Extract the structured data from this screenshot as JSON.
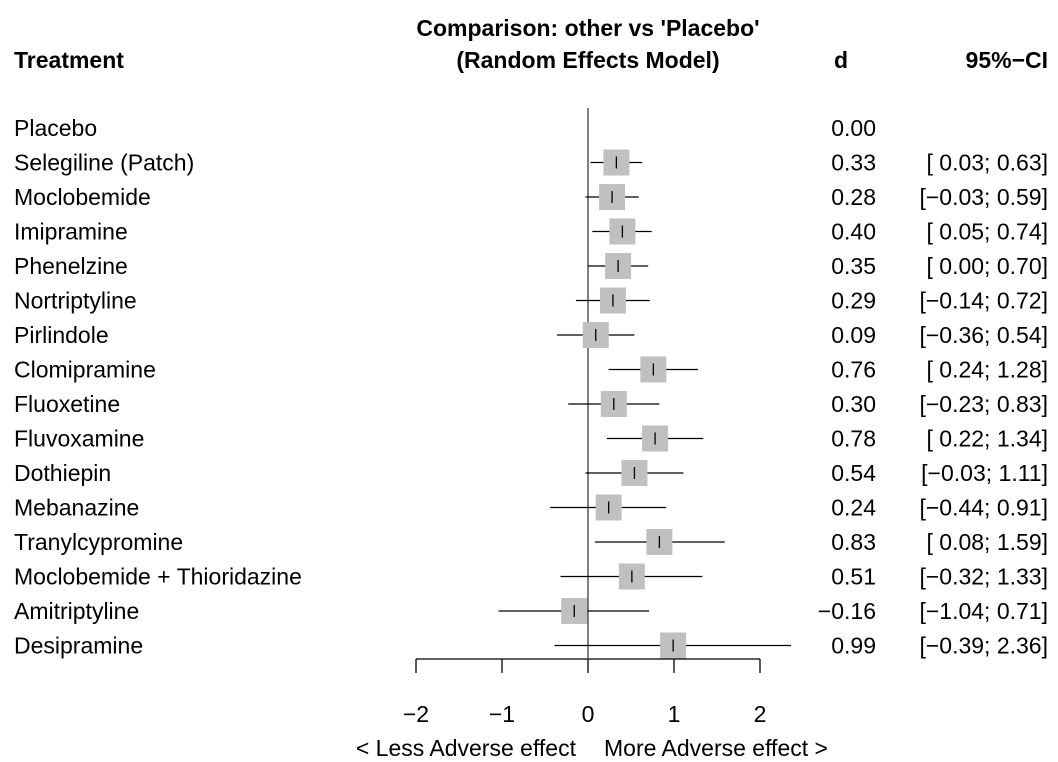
{
  "chart_data": {
    "type": "forest",
    "title": "Comparison: other vs 'Placebo'",
    "subtitle": "(Random Effects Model)",
    "columns": {
      "label": "Treatment",
      "estimate": "d",
      "ci": "95%−CI"
    },
    "rows": [
      {
        "label": "Placebo",
        "d": 0.0,
        "lo": null,
        "hi": null,
        "d_text": "0.00",
        "ci_text": ""
      },
      {
        "label": "Selegiline (Patch)",
        "d": 0.33,
        "lo": 0.03,
        "hi": 0.63,
        "d_text": "0.33",
        "ci_text": "[ 0.03; 0.63]"
      },
      {
        "label": "Moclobemide",
        "d": 0.28,
        "lo": -0.03,
        "hi": 0.59,
        "d_text": "0.28",
        "ci_text": "[−0.03; 0.59]"
      },
      {
        "label": "Imipramine",
        "d": 0.4,
        "lo": 0.05,
        "hi": 0.74,
        "d_text": "0.40",
        "ci_text": "[ 0.05; 0.74]"
      },
      {
        "label": "Phenelzine",
        "d": 0.35,
        "lo": 0.0,
        "hi": 0.7,
        "d_text": "0.35",
        "ci_text": "[ 0.00; 0.70]"
      },
      {
        "label": "Nortriptyline",
        "d": 0.29,
        "lo": -0.14,
        "hi": 0.72,
        "d_text": "0.29",
        "ci_text": "[−0.14; 0.72]"
      },
      {
        "label": "Pirlindole",
        "d": 0.09,
        "lo": -0.36,
        "hi": 0.54,
        "d_text": "0.09",
        "ci_text": "[−0.36; 0.54]"
      },
      {
        "label": "Clomipramine",
        "d": 0.76,
        "lo": 0.24,
        "hi": 1.28,
        "d_text": "0.76",
        "ci_text": "[ 0.24; 1.28]"
      },
      {
        "label": "Fluoxetine",
        "d": 0.3,
        "lo": -0.23,
        "hi": 0.83,
        "d_text": "0.30",
        "ci_text": "[−0.23; 0.83]"
      },
      {
        "label": "Fluvoxamine",
        "d": 0.78,
        "lo": 0.22,
        "hi": 1.34,
        "d_text": "0.78",
        "ci_text": "[ 0.22; 1.34]"
      },
      {
        "label": "Dothiepin",
        "d": 0.54,
        "lo": -0.03,
        "hi": 1.11,
        "d_text": "0.54",
        "ci_text": "[−0.03; 1.11]"
      },
      {
        "label": "Mebanazine",
        "d": 0.24,
        "lo": -0.44,
        "hi": 0.91,
        "d_text": "0.24",
        "ci_text": "[−0.44; 0.91]"
      },
      {
        "label": "Tranylcypromine",
        "d": 0.83,
        "lo": 0.08,
        "hi": 1.59,
        "d_text": "0.83",
        "ci_text": "[ 0.08; 1.59]"
      },
      {
        "label": "Moclobemide + Thioridazine",
        "d": 0.51,
        "lo": -0.32,
        "hi": 1.33,
        "d_text": "0.51",
        "ci_text": "[−0.32; 1.33]"
      },
      {
        "label": "Amitriptyline",
        "d": -0.16,
        "lo": -1.04,
        "hi": 0.71,
        "d_text": "−0.16",
        "ci_text": "[−1.04; 0.71]"
      },
      {
        "label": "Desipramine",
        "d": 0.99,
        "lo": -0.39,
        "hi": 2.36,
        "d_text": "0.99",
        "ci_text": "[−0.39; 2.36]"
      }
    ],
    "x_axis": {
      "ticks": [
        -2,
        -1,
        0,
        1,
        2
      ],
      "tick_labels": [
        "−2",
        "−1",
        "0",
        "1",
        "2"
      ],
      "xlim": [
        -2,
        2
      ],
      "label_left": "< Less Adverse effect",
      "label_right": "More Adverse effect  >"
    },
    "reference_line": 0,
    "grid": false,
    "colors": {
      "square": "#c0c0c0",
      "lines": "#000000"
    }
  }
}
